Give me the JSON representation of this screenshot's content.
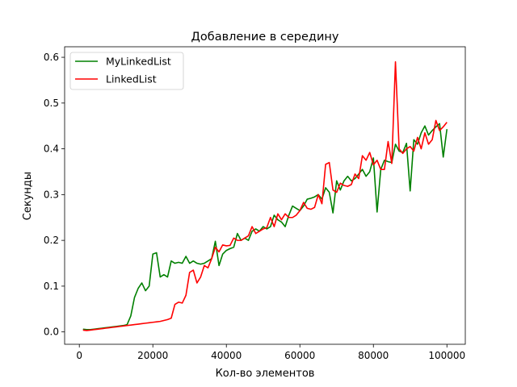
{
  "chart_data": {
    "type": "line",
    "title": "Добавление в середину",
    "xlabel": "Кол-во элементов",
    "ylabel": "Секунды",
    "xlim": [
      -4000,
      105000
    ],
    "ylim": [
      -0.027,
      0.623
    ],
    "xticks": [
      0,
      20000,
      40000,
      60000,
      80000,
      100000
    ],
    "yticks": [
      0.0,
      0.1,
      0.2,
      0.3,
      0.4,
      0.5,
      0.6
    ],
    "xtick_labels": [
      "0",
      "20000",
      "40000",
      "60000",
      "80000",
      "100000"
    ],
    "ytick_labels": [
      "0.0",
      "0.1",
      "0.2",
      "0.3",
      "0.4",
      "0.5",
      "0.6"
    ],
    "grid": false,
    "legend_position": "top-left",
    "x": [
      1000,
      2000,
      3000,
      4000,
      5000,
      6000,
      7000,
      8000,
      9000,
      10000,
      11000,
      12000,
      13000,
      14000,
      15000,
      16000,
      17000,
      18000,
      19000,
      20000,
      21000,
      22000,
      23000,
      24000,
      25000,
      26000,
      27000,
      28000,
      29000,
      30000,
      31000,
      32000,
      33000,
      34000,
      35000,
      36000,
      37000,
      38000,
      39000,
      40000,
      41000,
      42000,
      43000,
      44000,
      45000,
      46000,
      47000,
      48000,
      49000,
      50000,
      51000,
      52000,
      53000,
      54000,
      55000,
      56000,
      57000,
      58000,
      59000,
      60000,
      61000,
      62000,
      63000,
      64000,
      65000,
      66000,
      67000,
      68000,
      69000,
      70000,
      71000,
      72000,
      73000,
      74000,
      75000,
      76000,
      77000,
      78000,
      79000,
      80000,
      81000,
      82000,
      83000,
      84000,
      85000,
      86000,
      87000,
      88000,
      89000,
      90000,
      91000,
      92000,
      93000,
      94000,
      95000,
      96000,
      97000,
      98000,
      99000,
      100000
    ],
    "series": [
      {
        "name": "MyLinkedList",
        "color": "#008000",
        "values": [
          0.006,
          0.005,
          0.005,
          0.006,
          0.007,
          0.008,
          0.009,
          0.01,
          0.011,
          0.012,
          0.013,
          0.014,
          0.016,
          0.035,
          0.075,
          0.095,
          0.107,
          0.09,
          0.1,
          0.17,
          0.173,
          0.12,
          0.125,
          0.12,
          0.155,
          0.15,
          0.152,
          0.15,
          0.165,
          0.15,
          0.155,
          0.15,
          0.148,
          0.15,
          0.155,
          0.16,
          0.198,
          0.145,
          0.17,
          0.178,
          0.182,
          0.185,
          0.215,
          0.2,
          0.205,
          0.2,
          0.22,
          0.225,
          0.22,
          0.23,
          0.225,
          0.23,
          0.255,
          0.245,
          0.24,
          0.23,
          0.255,
          0.275,
          0.27,
          0.265,
          0.275,
          0.29,
          0.292,
          0.295,
          0.3,
          0.29,
          0.315,
          0.305,
          0.26,
          0.33,
          0.31,
          0.33,
          0.34,
          0.33,
          0.335,
          0.345,
          0.355,
          0.34,
          0.35,
          0.38,
          0.262,
          0.355,
          0.375,
          0.372,
          0.37,
          0.41,
          0.395,
          0.392,
          0.412,
          0.308,
          0.42,
          0.41,
          0.435,
          0.45,
          0.43,
          0.44,
          0.448,
          0.455,
          0.382,
          0.443
        ]
      },
      {
        "name": "LinkedList",
        "color": "#ff0000",
        "values": [
          0.004,
          0.003,
          0.004,
          0.005,
          0.006,
          0.007,
          0.008,
          0.009,
          0.01,
          0.011,
          0.012,
          0.013,
          0.014,
          0.015,
          0.016,
          0.017,
          0.018,
          0.019,
          0.02,
          0.021,
          0.022,
          0.023,
          0.025,
          0.027,
          0.03,
          0.06,
          0.065,
          0.063,
          0.08,
          0.13,
          0.135,
          0.107,
          0.12,
          0.145,
          0.14,
          0.16,
          0.185,
          0.175,
          0.19,
          0.188,
          0.189,
          0.205,
          0.2,
          0.2,
          0.205,
          0.21,
          0.23,
          0.215,
          0.22,
          0.225,
          0.228,
          0.25,
          0.23,
          0.258,
          0.245,
          0.258,
          0.25,
          0.25,
          0.255,
          0.265,
          0.283,
          0.27,
          0.268,
          0.272,
          0.3,
          0.28,
          0.366,
          0.37,
          0.31,
          0.305,
          0.325,
          0.32,
          0.318,
          0.322,
          0.345,
          0.335,
          0.385,
          0.375,
          0.392,
          0.365,
          0.375,
          0.355,
          0.355,
          0.416,
          0.368,
          0.59,
          0.4,
          0.39,
          0.4,
          0.405,
          0.395,
          0.425,
          0.4,
          0.435,
          0.41,
          0.42,
          0.462,
          0.44,
          0.448,
          0.458
        ]
      }
    ]
  }
}
